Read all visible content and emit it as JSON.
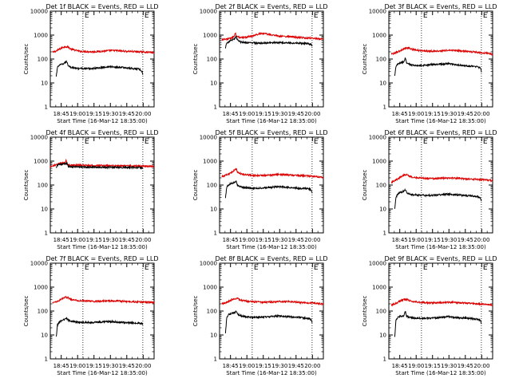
{
  "figure": {
    "start_time_label": "Start Time (16-Mar-12 18:35:00)",
    "ylabel": "Counts/sec",
    "y_tick_labels": [
      "1",
      "10",
      "100",
      "1000",
      "10000"
    ],
    "x_tick_labels": [
      "18:45",
      "19:00",
      "19:15",
      "19:30",
      "19:45",
      "20:00"
    ],
    "marker_labels": [
      "E",
      "E"
    ]
  },
  "colors": {
    "events": "#000000",
    "lld": "#dd0000"
  },
  "chart_data": [
    {
      "type": "line",
      "title": "Det 1f BLACK = Events, RED = LLD",
      "xlabel": "Start Time (16-Mar-12 18:35:00)",
      "ylabel": "Counts/sec",
      "xlim": [
        "18:35",
        "20:10"
      ],
      "ylim": [
        1,
        10000
      ],
      "yscale": "log",
      "grid": false,
      "markers_min": [
        55,
        156
      ],
      "series": [
        {
          "name": "LLD",
          "color": "#dd0000",
          "x": [
            4,
            10,
            15,
            20,
            25,
            30,
            35,
            40,
            50,
            60,
            70,
            80,
            90,
            100,
            110,
            120,
            130,
            140,
            150,
            160,
            170,
            175
          ],
          "values": [
            190,
            215,
            255,
            300,
            330,
            320,
            260,
            240,
            210,
            205,
            200,
            205,
            215,
            225,
            225,
            215,
            210,
            205,
            200,
            195,
            190,
            180
          ]
        },
        {
          "name": "Events",
          "color": "#000000",
          "x": [
            10,
            12,
            15,
            20,
            25,
            28,
            30,
            35,
            40,
            50,
            60,
            70,
            80,
            90,
            100,
            110,
            120,
            130,
            140,
            150,
            155,
            156
          ],
          "values": [
            18,
            45,
            55,
            60,
            70,
            78,
            55,
            45,
            42,
            40,
            40,
            40,
            42,
            45,
            48,
            46,
            45,
            42,
            40,
            38,
            30,
            22
          ]
        }
      ]
    },
    {
      "type": "line",
      "title": "Det 2f BLACK = Events, RED = LLD",
      "xlabel": "Start Time (16-Mar-12 18:35:00)",
      "ylabel": "Counts/sec",
      "xlim": [
        "18:35",
        "20:10"
      ],
      "ylim": [
        1,
        10000
      ],
      "yscale": "log",
      "grid": false,
      "markers_min": [
        55,
        156
      ],
      "series": [
        {
          "name": "LLD",
          "color": "#dd0000",
          "x": [
            4,
            10,
            15,
            20,
            25,
            27,
            28,
            30,
            35,
            40,
            50,
            60,
            70,
            80,
            90,
            100,
            110,
            120,
            130,
            140,
            150,
            160,
            170,
            175
          ],
          "values": [
            650,
            680,
            700,
            750,
            900,
            1300,
            900,
            850,
            800,
            800,
            850,
            1000,
            1200,
            1100,
            1000,
            900,
            880,
            850,
            800,
            780,
            760,
            720,
            700,
            650
          ]
        },
        {
          "name": "Events",
          "color": "#000000",
          "x": [
            10,
            12,
            15,
            20,
            25,
            28,
            30,
            35,
            40,
            50,
            60,
            70,
            80,
            90,
            100,
            110,
            120,
            130,
            140,
            150,
            155,
            156
          ],
          "values": [
            300,
            450,
            520,
            600,
            680,
            900,
            620,
            520,
            500,
            480,
            470,
            460,
            470,
            480,
            490,
            480,
            470,
            460,
            450,
            430,
            400,
            350
          ]
        }
      ]
    },
    {
      "type": "line",
      "title": "Det 3f BLACK = Events, RED = LLD",
      "xlabel": "Start Time (16-Mar-12 18:35:00)",
      "ylabel": "Counts/sec",
      "xlim": [
        "18:35",
        "20:10"
      ],
      "ylim": [
        1,
        10000
      ],
      "yscale": "log",
      "grid": false,
      "markers_min": [
        55,
        156
      ],
      "series": [
        {
          "name": "LLD",
          "color": "#dd0000",
          "x": [
            4,
            10,
            15,
            20,
            25,
            30,
            35,
            40,
            50,
            60,
            70,
            80,
            90,
            100,
            110,
            120,
            130,
            140,
            150,
            160,
            170,
            175
          ],
          "values": [
            160,
            175,
            200,
            230,
            260,
            300,
            280,
            250,
            230,
            220,
            215,
            215,
            220,
            230,
            230,
            220,
            210,
            200,
            190,
            180,
            170,
            150
          ]
        },
        {
          "name": "Events",
          "color": "#000000",
          "x": [
            10,
            12,
            15,
            20,
            25,
            28,
            30,
            35,
            40,
            50,
            60,
            70,
            80,
            90,
            100,
            110,
            120,
            130,
            140,
            150,
            155,
            156
          ],
          "values": [
            20,
            50,
            60,
            70,
            75,
            110,
            70,
            60,
            55,
            52,
            55,
            58,
            60,
            62,
            65,
            60,
            55,
            52,
            50,
            48,
            40,
            30
          ]
        }
      ]
    },
    {
      "type": "line",
      "title": "Det 4f BLACK = Events, RED = LLD",
      "xlabel": "Start Time (16-Mar-12 18:35:00)",
      "ylabel": "Counts/sec",
      "xlim": [
        "18:35",
        "20:10"
      ],
      "ylim": [
        1,
        10000
      ],
      "yscale": "log",
      "grid": false,
      "markers_min": [
        55,
        156
      ],
      "series": [
        {
          "name": "LLD",
          "color": "#dd0000",
          "x": [
            0,
            5,
            10,
            15,
            20,
            25,
            27,
            28,
            30,
            40,
            50,
            60,
            70,
            80,
            90,
            100,
            110,
            120,
            130,
            140,
            150,
            160,
            170,
            175
          ],
          "values": [
            600,
            640,
            700,
            780,
            820,
            850,
            1100,
            820,
            700,
            680,
            680,
            660,
            650,
            650,
            650,
            640,
            640,
            630,
            630,
            620,
            620,
            610,
            600,
            580
          ]
        },
        {
          "name": "Events",
          "color": "#000000",
          "x": [
            10,
            12,
            15,
            20,
            25,
            28,
            30,
            35,
            40,
            50,
            60,
            70,
            80,
            90,
            100,
            110,
            120,
            130,
            140,
            150,
            155,
            156
          ],
          "values": [
            550,
            700,
            720,
            740,
            760,
            820,
            600,
            580,
            570,
            560,
            560,
            550,
            550,
            550,
            550,
            545,
            545,
            540,
            540,
            535,
            530,
            520
          ]
        }
      ]
    },
    {
      "type": "line",
      "title": "Det 5f BLACK = Events, RED = LLD",
      "xlabel": "Start Time (16-Mar-12 18:35:00)",
      "ylabel": "Counts/sec",
      "xlim": [
        "18:35",
        "20:10"
      ],
      "ylim": [
        1,
        10000
      ],
      "yscale": "log",
      "grid": false,
      "markers_min": [
        55,
        156
      ],
      "series": [
        {
          "name": "LLD",
          "color": "#dd0000",
          "x": [
            4,
            10,
            15,
            20,
            25,
            28,
            30,
            35,
            40,
            50,
            60,
            70,
            80,
            90,
            100,
            110,
            120,
            130,
            140,
            150,
            160,
            170,
            175
          ],
          "values": [
            230,
            250,
            280,
            330,
            420,
            480,
            360,
            300,
            280,
            260,
            250,
            250,
            255,
            265,
            275,
            270,
            260,
            250,
            245,
            240,
            230,
            220,
            200
          ]
        },
        {
          "name": "Events",
          "color": "#000000",
          "x": [
            10,
            12,
            15,
            20,
            25,
            28,
            30,
            35,
            40,
            50,
            60,
            70,
            80,
            90,
            100,
            110,
            120,
            130,
            140,
            150,
            155,
            156
          ],
          "values": [
            30,
            80,
            100,
            120,
            130,
            150,
            100,
            85,
            80,
            75,
            72,
            74,
            78,
            82,
            85,
            82,
            78,
            75,
            72,
            70,
            60,
            45
          ]
        }
      ]
    },
    {
      "type": "line",
      "title": "Det 6f BLACK = Events, RED = LLD",
      "xlabel": "Start Time (16-Mar-12 18:35:00)",
      "ylabel": "Counts/sec",
      "xlim": [
        "18:35",
        "20:10"
      ],
      "ylim": [
        1,
        10000
      ],
      "yscale": "log",
      "grid": false,
      "markers_min": [
        55,
        156
      ],
      "series": [
        {
          "name": "LLD",
          "color": "#dd0000",
          "x": [
            4,
            10,
            15,
            20,
            25,
            30,
            35,
            40,
            50,
            60,
            70,
            80,
            90,
            100,
            110,
            120,
            130,
            140,
            150,
            160,
            170,
            175
          ],
          "values": [
            130,
            150,
            180,
            220,
            260,
            280,
            240,
            210,
            200,
            190,
            185,
            185,
            190,
            195,
            195,
            190,
            180,
            175,
            170,
            165,
            160,
            150
          ]
        },
        {
          "name": "Events",
          "color": "#000000",
          "x": [
            10,
            12,
            15,
            20,
            25,
            28,
            30,
            35,
            40,
            50,
            60,
            70,
            80,
            90,
            100,
            110,
            120,
            130,
            140,
            150,
            155,
            156
          ],
          "values": [
            10,
            30,
            42,
            50,
            55,
            65,
            48,
            42,
            40,
            38,
            37,
            37,
            38,
            40,
            42,
            40,
            38,
            36,
            35,
            33,
            28,
            22
          ]
        }
      ]
    },
    {
      "type": "line",
      "title": "Det 7f BLACK = Events, RED = LLD",
      "xlabel": "Start Time (16-Mar-12 18:35:00)",
      "ylabel": "Counts/sec",
      "xlim": [
        "18:35",
        "20:10"
      ],
      "ylim": [
        1,
        10000
      ],
      "yscale": "log",
      "grid": false,
      "markers_min": [
        55,
        156
      ],
      "series": [
        {
          "name": "LLD",
          "color": "#dd0000",
          "x": [
            4,
            10,
            15,
            20,
            25,
            30,
            35,
            40,
            50,
            60,
            70,
            80,
            90,
            100,
            110,
            120,
            130,
            140,
            150,
            160,
            170,
            175
          ],
          "values": [
            220,
            240,
            280,
            330,
            380,
            360,
            310,
            290,
            270,
            260,
            255,
            255,
            260,
            265,
            265,
            260,
            250,
            245,
            240,
            235,
            230,
            220
          ]
        },
        {
          "name": "Events",
          "color": "#000000",
          "x": [
            10,
            12,
            15,
            20,
            25,
            28,
            30,
            35,
            40,
            50,
            60,
            70,
            80,
            90,
            100,
            110,
            120,
            130,
            140,
            150,
            155,
            156
          ],
          "values": [
            8,
            25,
            35,
            40,
            45,
            50,
            42,
            38,
            36,
            34,
            33,
            33,
            34,
            35,
            36,
            35,
            34,
            33,
            32,
            31,
            30,
            28
          ]
        }
      ]
    },
    {
      "type": "line",
      "title": "Det 8f BLACK = Events, RED = LLD",
      "xlabel": "Start Time (16-Mar-12 18:35:00)",
      "ylabel": "Counts/sec",
      "xlim": [
        "18:35",
        "20:10"
      ],
      "ylim": [
        1,
        10000
      ],
      "yscale": "log",
      "grid": false,
      "markers_min": [
        55,
        156
      ],
      "series": [
        {
          "name": "LLD",
          "color": "#dd0000",
          "x": [
            4,
            10,
            15,
            20,
            25,
            30,
            35,
            40,
            50,
            60,
            70,
            80,
            90,
            100,
            110,
            120,
            130,
            140,
            150,
            160,
            170,
            175
          ],
          "values": [
            200,
            220,
            250,
            290,
            330,
            340,
            290,
            270,
            250,
            240,
            235,
            235,
            240,
            250,
            250,
            245,
            235,
            225,
            220,
            215,
            205,
            195
          ]
        },
        {
          "name": "Events",
          "color": "#000000",
          "x": [
            10,
            12,
            15,
            20,
            25,
            28,
            30,
            35,
            40,
            50,
            60,
            70,
            80,
            90,
            100,
            110,
            120,
            130,
            140,
            150,
            155,
            156
          ],
          "values": [
            12,
            50,
            70,
            80,
            85,
            100,
            75,
            65,
            60,
            56,
            54,
            55,
            57,
            60,
            62,
            60,
            57,
            55,
            52,
            50,
            42,
            30
          ]
        }
      ]
    },
    {
      "type": "line",
      "title": "Det 9f BLACK = Events, RED = LLD",
      "xlabel": "Start Time (16-Mar-12 18:35:00)",
      "ylabel": "Counts/sec",
      "xlim": [
        "18:35",
        "20:10"
      ],
      "ylim": [
        1,
        10000
      ],
      "yscale": "log",
      "grid": false,
      "markers_min": [
        55,
        156
      ],
      "series": [
        {
          "name": "LLD",
          "color": "#dd0000",
          "x": [
            4,
            10,
            15,
            20,
            25,
            30,
            35,
            40,
            50,
            60,
            70,
            80,
            90,
            100,
            110,
            120,
            130,
            140,
            150,
            160,
            170,
            175
          ],
          "values": [
            180,
            200,
            230,
            270,
            300,
            310,
            270,
            250,
            235,
            225,
            220,
            220,
            225,
            230,
            230,
            225,
            215,
            205,
            200,
            195,
            185,
            170
          ]
        },
        {
          "name": "Events",
          "color": "#000000",
          "x": [
            10,
            12,
            15,
            20,
            25,
            28,
            30,
            35,
            40,
            50,
            60,
            70,
            80,
            90,
            100,
            110,
            120,
            130,
            140,
            150,
            155,
            156
          ],
          "values": [
            8,
            40,
            55,
            60,
            65,
            95,
            60,
            55,
            52,
            50,
            50,
            50,
            52,
            55,
            58,
            55,
            52,
            50,
            48,
            45,
            38,
            28
          ]
        }
      ]
    }
  ]
}
